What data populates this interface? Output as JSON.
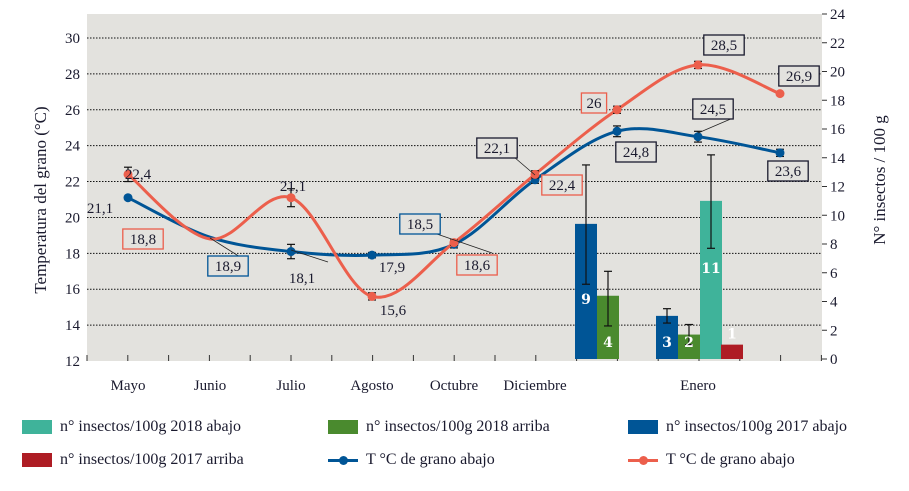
{
  "chart_data": {
    "type": "bar+line",
    "title": "",
    "x_categories": [
      "Mayo",
      "Junio",
      "Julio",
      "Agosto",
      "Octubre",
      "Diciembre",
      "Enero"
    ],
    "ylabel_left": "Temperatura del grano (°C)",
    "ylabel_right": "N° insectos / 100 g",
    "ylim_left": [
      12,
      30
    ],
    "yticks_left": [
      "12",
      "14",
      "16",
      "18",
      "20",
      "22",
      "24",
      "26",
      "28",
      "30"
    ],
    "ylim_right": [
      0,
      24
    ],
    "yticks_right": [
      "0",
      "2",
      "4",
      "6",
      "8",
      "10",
      "12",
      "14",
      "16",
      "18",
      "20",
      "22",
      "24"
    ],
    "grid": "horizontal dotted",
    "background_color": "#e3e2de",
    "line_series": [
      {
        "name": "T °C de grano abajo",
        "color": "#005596",
        "points": [
          {
            "x": "Mayo",
            "value": 21.1,
            "label": "21,1",
            "err": null,
            "boxed": false
          },
          {
            "x": "Julio",
            "value": 18.1,
            "label": "18,1",
            "err": 0.4,
            "boxed": false
          },
          {
            "x": "Agosto",
            "value": 17.9,
            "label": "17,9",
            "err": 0.15,
            "boxed": false
          },
          {
            "x": "Octubre",
            "value": 18.5,
            "label": "18,5",
            "err": 0.2,
            "boxed": true
          },
          {
            "x": "Diciembre",
            "value": 22.1,
            "label": "22,1",
            "err": 0.2,
            "boxed": true
          },
          {
            "x": "Enero-1",
            "value": 24.8,
            "label": "24,8",
            "err": 0.3,
            "boxed": true
          },
          {
            "x": "Enero-2",
            "value": 24.5,
            "label": "24,5",
            "err": 0.3,
            "boxed": true
          },
          {
            "x": "Enero-3",
            "value": 23.6,
            "label": "23,6",
            "err": 0.2,
            "boxed": true
          }
        ],
        "extra_labels": [
          {
            "label": "18,9",
            "boxed": true,
            "near": "Junio"
          }
        ]
      },
      {
        "name": "T °C de grano abajo",
        "color": "#ec5f4c",
        "points": [
          {
            "x": "Mayo",
            "value": 22.4,
            "label": "22,4",
            "err": 0.4,
            "boxed": false
          },
          {
            "x": "Julio",
            "value": 21.1,
            "label": "21,1",
            "err": 0.5,
            "boxed": false
          },
          {
            "x": "Agosto",
            "value": 15.6,
            "label": "15,6",
            "err": 0.2,
            "boxed": false
          },
          {
            "x": "Octubre",
            "value": 18.6,
            "label": "18,6",
            "err": 0.15,
            "boxed": true
          },
          {
            "x": "Diciembre",
            "value": 22.4,
            "label": "22,4",
            "err": 0.2,
            "boxed": true
          },
          {
            "x": "Enero-1",
            "value": 26.0,
            "label": "26",
            "err": 0.2,
            "boxed": true
          },
          {
            "x": "Enero-2",
            "value": 28.5,
            "label": "28,5",
            "err": 0.2,
            "boxed": true
          },
          {
            "x": "Enero-3",
            "value": 26.9,
            "label": "26,9",
            "err": null,
            "boxed": true
          }
        ],
        "extra_labels": [
          {
            "label": "18,8",
            "boxed": true,
            "near": "Mayo-Junio"
          }
        ]
      }
    ],
    "bar_series": [
      {
        "name": "n° insectos/100g 2018 abajo",
        "color": "#3fb39a",
        "bars": [
          {
            "group": "Enero",
            "value": 11,
            "label": "11",
            "err_low": 7.7,
            "err_high": 14.2
          }
        ]
      },
      {
        "name": "n° insectos/100g 2018 arriba",
        "color": "#4a8a2e",
        "bars": [
          {
            "group": "Diciembre-Enero",
            "value": 4.4,
            "label": "4",
            "err_low": 2.3,
            "err_high": 6.1
          },
          {
            "group": "Enero",
            "value": 1.7,
            "label": "2",
            "err_low": 1.0,
            "err_high": 2.4
          }
        ]
      },
      {
        "name": "n° insectos/100g 2017 abajo",
        "color": "#005596",
        "bars": [
          {
            "group": "Diciembre-Enero",
            "value": 9.4,
            "label": "9",
            "err_low": 5.2,
            "err_high": 13.5
          },
          {
            "group": "Enero",
            "value": 3.0,
            "label": "3",
            "err_low": 2.5,
            "err_high": 3.5
          }
        ]
      },
      {
        "name": "n° insectos/100g 2017 arriba",
        "color": "#ae1c24",
        "bars": [
          {
            "group": "Enero",
            "value": 1.0,
            "label": "1",
            "err_low": null,
            "err_high": null
          }
        ]
      }
    ],
    "legend": [
      {
        "label": "n° insectos/100g 2018 abajo",
        "type": "bar",
        "color": "#3fb39a"
      },
      {
        "label": "n° insectos/100g 2018 arriba",
        "type": "bar",
        "color": "#4a8a2e"
      },
      {
        "label": "n° insectos/100g 2017 abajo",
        "type": "bar",
        "color": "#005596"
      },
      {
        "label": "n° insectos/100g 2017 arriba",
        "type": "bar",
        "color": "#ae1c24"
      },
      {
        "label": "T °C de grano abajo",
        "type": "line",
        "color": "#005596"
      },
      {
        "label": "T °C de grano abajo",
        "type": "line",
        "color": "#ec5f4c"
      }
    ],
    "legend_position": "bottom"
  }
}
